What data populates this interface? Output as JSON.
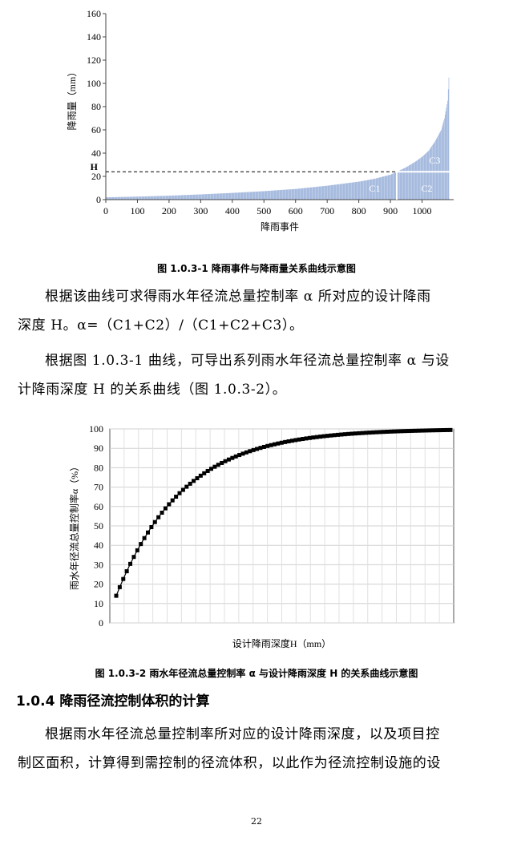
{
  "chart_data": [
    {
      "type": "bar",
      "xlabel": "降雨事件",
      "ylabel": "降雨量（mm）",
      "xlim": [
        0,
        1100
      ],
      "ylim": [
        0,
        160
      ],
      "x_ticks": [
        "0",
        "100",
        "200",
        "300",
        "400",
        "500",
        "600",
        "700",
        "800",
        "900",
        "1000"
      ],
      "y_ticks": [
        "0",
        "20",
        "40",
        "60",
        "80",
        "100",
        "120",
        "140",
        "160"
      ],
      "n_events": 1085,
      "curve_points": [
        [
          0,
          2
        ],
        [
          100,
          2.6
        ],
        [
          200,
          3.4
        ],
        [
          300,
          4.5
        ],
        [
          400,
          5.8
        ],
        [
          500,
          7.3
        ],
        [
          600,
          9.2
        ],
        [
          700,
          12
        ],
        [
          800,
          15.5
        ],
        [
          850,
          18
        ],
        [
          900,
          21.5
        ],
        [
          920,
          24
        ],
        [
          950,
          28
        ],
        [
          980,
          33
        ],
        [
          1000,
          37
        ],
        [
          1020,
          42
        ],
        [
          1040,
          50
        ],
        [
          1060,
          60
        ],
        [
          1070,
          70
        ],
        [
          1080,
          85
        ],
        [
          1085,
          110
        ]
      ],
      "H_value": 24,
      "H_label": "H",
      "H_event": 920,
      "region_labels": [
        "C1",
        "C2",
        "C3"
      ],
      "bar_color": "#8fa9d6"
    },
    {
      "type": "line",
      "xlabel": "设计降雨深度H（mm）",
      "ylabel": "雨水年径流总量控制率α（%）",
      "ylim": [
        0,
        100
      ],
      "y_ticks": [
        "0",
        "10",
        "20",
        "30",
        "40",
        "50",
        "60",
        "70",
        "80",
        "90",
        "100"
      ],
      "x_norm_range": [
        0,
        1
      ],
      "curve_k": 0.053,
      "y_start": 14,
      "n_points": 96,
      "marker": "square"
    }
  ],
  "captions": {
    "fig1": "图 1.0.3-1  降雨事件与降雨量关系曲线示意图",
    "fig2": "图 1.0.3-2 雨水年径流总量控制率 α 与设计降雨深度 H 的关系曲线示意图"
  },
  "text": {
    "p1_line1": "根据该曲线可求得雨水年径流总量控制率 α 所对应的设计降雨",
    "p1_line2": "深度 H。α=（C1+C2）/（C1+C2+C3）。",
    "p2_line1": "根据图 1.0.3-1 曲线，可导出系列雨水年径流总量控制率 α 与设",
    "p2_line2": "计降雨深度 H 的关系曲线（图 1.0.3-2）。",
    "heading": "1.0.4 降雨径流控制体积的计算",
    "p3_line1": "根据雨水年径流总量控制率所对应的设计降雨深度，以及项目控",
    "p3_line2": "制区面积，计算得到需控制的径流体积，以此作为径流控制设施的设"
  },
  "page_number": "22"
}
